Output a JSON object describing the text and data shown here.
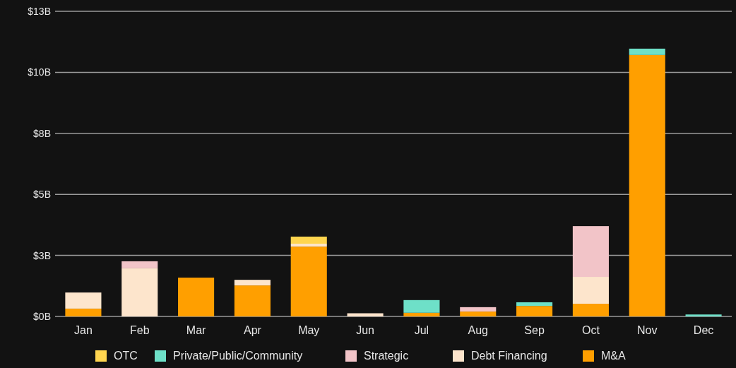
{
  "chart_data": {
    "type": "bar",
    "stacked": true,
    "categories": [
      "Jan",
      "Feb",
      "Mar",
      "Apr",
      "May",
      "Jun",
      "Jul",
      "Aug",
      "Sep",
      "Oct",
      "Nov",
      "Dec"
    ],
    "series": [
      {
        "name": "M&A",
        "color": "#ff9f00",
        "values": [
          0.32,
          0,
          1.59,
          1.27,
          2.86,
          0,
          0.15,
          0.2,
          0.43,
          0.52,
          10.71,
          0
        ]
      },
      {
        "name": "Debt Financing",
        "color": "#fde5cc",
        "values": [
          0.66,
          1.97,
          0,
          0.23,
          0.12,
          0.13,
          0,
          0,
          0,
          1.1,
          0,
          0
        ]
      },
      {
        "name": "Strategic",
        "color": "#f2c4c8",
        "values": [
          0,
          0.29,
          0,
          0,
          0,
          0,
          0,
          0.18,
          0,
          2.08,
          0,
          0
        ]
      },
      {
        "name": "Private/Public/Community",
        "color": "#6ee0c8",
        "values": [
          0,
          0,
          0,
          0,
          0,
          0,
          0.52,
          0,
          0.15,
          0,
          0.26,
          0.08
        ]
      },
      {
        "name": "OTC",
        "color": "#ffd54f",
        "values": [
          0,
          0,
          0,
          0,
          0.29,
          0,
          0,
          0,
          0,
          0,
          0,
          0
        ]
      }
    ],
    "ylim": [
      0,
      12.5
    ],
    "yticks": [
      {
        "value": 0,
        "label": "$0B"
      },
      {
        "value": 2.5,
        "label": "$3B"
      },
      {
        "value": 5,
        "label": "$5B"
      },
      {
        "value": 7.5,
        "label": "$8B"
      },
      {
        "value": 10,
        "label": "$10B"
      },
      {
        "value": 12.5,
        "label": "$13B"
      }
    ],
    "grid": "y",
    "legend": "bottom"
  }
}
